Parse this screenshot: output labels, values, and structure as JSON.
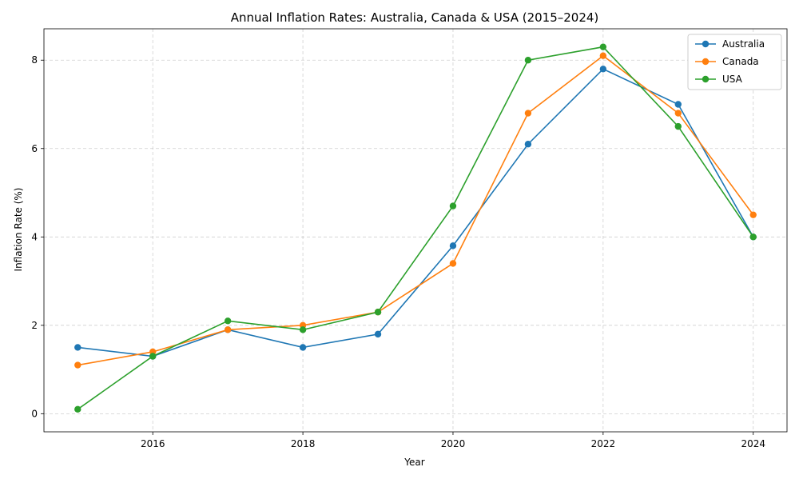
{
  "chart_data": {
    "type": "line",
    "title": "Annual Inflation Rates: Australia, Canada & USA (2015–2024)",
    "xlabel": "Year",
    "ylabel": "Inflation Rate (%)",
    "x": [
      2015,
      2016,
      2017,
      2018,
      2019,
      2020,
      2021,
      2022,
      2023,
      2024
    ],
    "x_ticks": [
      2016,
      2018,
      2020,
      2022,
      2024
    ],
    "y_ticks": [
      0,
      2,
      4,
      6,
      8
    ],
    "xlim": [
      2014.55,
      2024.45
    ],
    "ylim": [
      -0.41,
      8.71
    ],
    "grid": true,
    "legend_position": "top-right",
    "marker": "circle",
    "series": [
      {
        "name": "Australia",
        "color": "#1f77b4",
        "values": [
          1.5,
          1.3,
          1.9,
          1.5,
          1.8,
          3.8,
          6.1,
          7.8,
          7.0,
          4.0
        ]
      },
      {
        "name": "Canada",
        "color": "#ff7f0e",
        "values": [
          1.1,
          1.4,
          1.9,
          2.0,
          2.3,
          3.4,
          6.8,
          8.1,
          6.8,
          4.5
        ]
      },
      {
        "name": "USA",
        "color": "#2ca02c",
        "values": [
          0.1,
          1.3,
          2.1,
          1.9,
          2.3,
          4.7,
          8.0,
          8.3,
          6.5,
          4.0
        ]
      }
    ]
  }
}
